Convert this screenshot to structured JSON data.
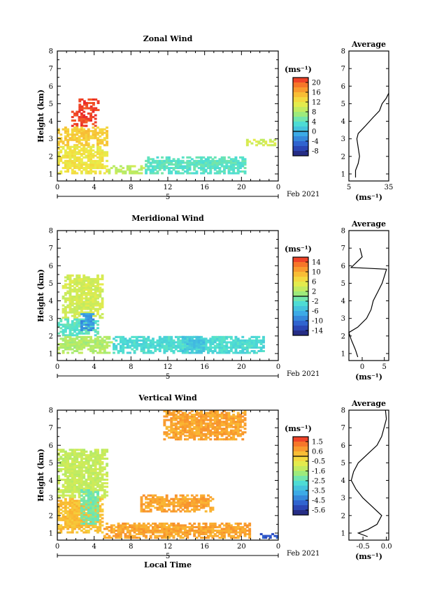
{
  "chart_data": [
    {
      "type": "heatmap",
      "title": "Zonal Wind",
      "ylabel": "Height (km)",
      "xlabel": "",
      "xlim": [
        0,
        24
      ],
      "ylim": [
        0.6,
        8
      ],
      "x_ticks": [
        "0",
        "4",
        "8",
        "12",
        "16",
        "20",
        "0"
      ],
      "y_ticks": [
        "1",
        "2",
        "3",
        "4",
        "5",
        "6",
        "7",
        "8"
      ],
      "date_marker": "5",
      "date_label": "Feb 2021",
      "colorbar": {
        "unit": "(ms⁻¹)",
        "ticks": [
          "20",
          "16",
          "12",
          "8",
          "4",
          "0",
          "-4",
          "-8"
        ],
        "min": -10,
        "max": 22
      },
      "average_profile": {
        "title": "Average",
        "xlabel": "(ms⁻¹)",
        "x_ticks": [
          "5",
          "35"
        ],
        "xlim": [
          5,
          35
        ],
        "points": [
          [
            10,
            0.8
          ],
          [
            10,
            1.2
          ],
          [
            12,
            1.6
          ],
          [
            13,
            2.0
          ],
          [
            12,
            2.5
          ],
          [
            11,
            3.0
          ],
          [
            12,
            3.3
          ],
          [
            17,
            3.7
          ],
          [
            23,
            4.2
          ],
          [
            28,
            4.6
          ],
          [
            30,
            5.0
          ],
          [
            33,
            5.3
          ],
          [
            35,
            5.6
          ]
        ]
      },
      "regions": [
        {
          "t0": 1.5,
          "t1": 4.2,
          "h0": 3.7,
          "h1": 4.6,
          "value": 21
        },
        {
          "t0": 2.3,
          "t1": 4.5,
          "h0": 4.6,
          "h1": 5.3,
          "value": 21
        },
        {
          "t0": 0.0,
          "t1": 5.5,
          "h0": 2.6,
          "h1": 3.7,
          "value": 14
        },
        {
          "t0": 0.0,
          "t1": 5.5,
          "h0": 1.0,
          "h1": 2.6,
          "value": 12
        },
        {
          "t0": 5.5,
          "t1": 9.5,
          "h0": 1.0,
          "h1": 1.5,
          "value": 9
        },
        {
          "t0": 9.5,
          "t1": 20.5,
          "h0": 1.0,
          "h1": 2.0,
          "value": 4
        },
        {
          "t0": 20.5,
          "t1": 24,
          "h0": 2.6,
          "h1": 3.0,
          "value": 10
        }
      ]
    },
    {
      "type": "heatmap",
      "title": "Meridional Wind",
      "ylabel": "Height (km)",
      "xlabel": "",
      "xlim": [
        0,
        24
      ],
      "ylim": [
        0.6,
        8
      ],
      "x_ticks": [
        "0",
        "4",
        "8",
        "12",
        "16",
        "20",
        "0"
      ],
      "y_ticks": [
        "1",
        "2",
        "3",
        "4",
        "5",
        "6",
        "7",
        "8"
      ],
      "date_marker": "5",
      "date_label": "Feb 2021",
      "colorbar": {
        "unit": "(ms⁻¹)",
        "ticks": [
          "14",
          "10",
          "6",
          "2",
          "-2",
          "-6",
          "-10",
          "-14"
        ],
        "min": -16,
        "max": 16
      },
      "average_profile": {
        "title": "Average",
        "xlabel": "(ms⁻¹)",
        "x_ticks": [
          "0",
          "5"
        ],
        "xlim": [
          -3,
          6
        ],
        "points": [
          [
            -1,
            0.8
          ],
          [
            -1.5,
            1.2
          ],
          [
            -2.5,
            1.8
          ],
          [
            -3,
            2.2
          ],
          [
            -1,
            2.5
          ],
          [
            1,
            3.0
          ],
          [
            2,
            3.5
          ],
          [
            2.5,
            4.0
          ],
          [
            3.5,
            4.5
          ],
          [
            4.5,
            5.0
          ],
          [
            5,
            5.4
          ],
          [
            5.5,
            5.8
          ],
          [
            -2.5,
            5.9
          ],
          [
            0,
            6.5
          ],
          [
            -0.5,
            7.0
          ]
        ]
      },
      "regions": [
        {
          "t0": 0.5,
          "t1": 5.0,
          "h0": 3.0,
          "h1": 5.5,
          "value": 4
        },
        {
          "t0": 0.0,
          "t1": 4.5,
          "h0": 2.0,
          "h1": 3.0,
          "value": -2
        },
        {
          "t0": 2.5,
          "t1": 4.0,
          "h0": 2.3,
          "h1": 3.3,
          "value": -8
        },
        {
          "t0": 0.0,
          "t1": 6.0,
          "h0": 1.0,
          "h1": 2.0,
          "value": 2
        },
        {
          "t0": 6.0,
          "t1": 22.5,
          "h0": 1.0,
          "h1": 2.0,
          "value": -3
        },
        {
          "t0": 13.5,
          "t1": 16.0,
          "h0": 1.0,
          "h1": 2.0,
          "value": -5
        }
      ]
    },
    {
      "type": "heatmap",
      "title": "Vertical Wind",
      "ylabel": "Height (km)",
      "xlabel": "Local Time",
      "xlim": [
        0,
        24
      ],
      "ylim": [
        0.6,
        8
      ],
      "x_ticks": [
        "0",
        "4",
        "8",
        "12",
        "16",
        "20",
        "0"
      ],
      "y_ticks": [
        "1",
        "2",
        "3",
        "4",
        "5",
        "6",
        "7",
        "8"
      ],
      "date_marker": "5",
      "date_label": "Feb 2021",
      "colorbar": {
        "unit": "(ms⁻¹)",
        "ticks": [
          "1.5",
          "0.6",
          "-0.5",
          "-1.6",
          "-2.5",
          "-3.5",
          "-4.5",
          "-5.6"
        ],
        "min": -6,
        "max": 2
      },
      "average_profile": {
        "title": "Average",
        "xlabel": "(ms⁻¹)",
        "x_ticks": [
          "-0.5",
          "0.0"
        ],
        "xlim": [
          -0.8,
          0.05
        ],
        "points": [
          [
            -0.4,
            0.8
          ],
          [
            -0.6,
            1.0
          ],
          [
            -0.4,
            1.2
          ],
          [
            -0.2,
            1.5
          ],
          [
            -0.1,
            2.0
          ],
          [
            -0.3,
            2.5
          ],
          [
            -0.5,
            3.0
          ],
          [
            -0.65,
            3.5
          ],
          [
            -0.75,
            4.0
          ],
          [
            -0.7,
            4.5
          ],
          [
            -0.6,
            5.0
          ],
          [
            -0.4,
            5.5
          ],
          [
            -0.2,
            6.0
          ],
          [
            -0.1,
            6.5
          ],
          [
            -0.05,
            7.0
          ],
          [
            0,
            7.5
          ],
          [
            -0.02,
            8.0
          ]
        ]
      },
      "regions": [
        {
          "t0": 0.0,
          "t1": 5.5,
          "h0": 3.0,
          "h1": 5.8,
          "value": -1.2
        },
        {
          "t0": 0.0,
          "t1": 5.0,
          "h0": 1.0,
          "h1": 3.0,
          "value": 0.2
        },
        {
          "t0": 2.5,
          "t1": 4.5,
          "h0": 1.5,
          "h1": 3.5,
          "value": -2.2
        },
        {
          "t0": 5.0,
          "t1": 21.0,
          "h0": 0.7,
          "h1": 1.6,
          "value": 0.6
        },
        {
          "t0": 9.0,
          "t1": 17.0,
          "h0": 2.2,
          "h1": 3.2,
          "value": 0.6
        },
        {
          "t0": 11.5,
          "t1": 20.5,
          "h0": 6.3,
          "h1": 8.0,
          "value": 0.6
        },
        {
          "t0": 22.0,
          "t1": 24,
          "h0": 0.7,
          "h1": 1.0,
          "value": -5
        }
      ]
    }
  ]
}
